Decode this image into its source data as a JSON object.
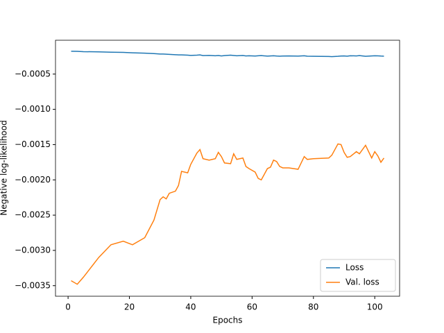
{
  "chart_data": {
    "type": "line",
    "xlabel": "Epochs",
    "ylabel": "Negative log-likelihood",
    "x": [
      1,
      3,
      5,
      10,
      14,
      18,
      21,
      25,
      28,
      30,
      31,
      32,
      33,
      35,
      36,
      37,
      39,
      40,
      42,
      43,
      44,
      46,
      48,
      49,
      50,
      51,
      53,
      54,
      55,
      57,
      58,
      59,
      61,
      62,
      63,
      65,
      66,
      67,
      68,
      69,
      70,
      72,
      75,
      77,
      78,
      80,
      85,
      86,
      88,
      89,
      90,
      91,
      92,
      94,
      95,
      97,
      99,
      100,
      101,
      102,
      103
    ],
    "series": [
      {
        "name": "Loss",
        "color": "#1f77b4",
        "values": [
          -0.000176,
          -0.000178,
          -0.000182,
          -0.000185,
          -0.00019,
          -0.000192,
          -0.000198,
          -0.000203,
          -0.00021,
          -0.000215,
          -0.000216,
          -0.000218,
          -0.00022,
          -0.000225,
          -0.000228,
          -0.000228,
          -0.000232,
          -0.000235,
          -0.000232,
          -0.000228,
          -0.000238,
          -0.000235,
          -0.00024,
          -0.000236,
          -0.000242,
          -0.000238,
          -0.000232,
          -0.000236,
          -0.00024,
          -0.000236,
          -0.000242,
          -0.00024,
          -0.000244,
          -0.00024,
          -0.000238,
          -0.000245,
          -0.000242,
          -0.00024,
          -0.000244,
          -0.000246,
          -0.000244,
          -0.000242,
          -0.000245,
          -0.00024,
          -0.000246,
          -0.000248,
          -0.00025,
          -0.000252,
          -0.000248,
          -0.000244,
          -0.000242,
          -0.000246,
          -0.00024,
          -0.000242,
          -0.000238,
          -0.000248,
          -0.000242,
          -0.00024,
          -0.000241,
          -0.000244,
          -0.000246
        ]
      },
      {
        "name": "Val. loss",
        "color": "#ff7f0e",
        "values": [
          -0.00343,
          -0.00348,
          -0.00338,
          -0.0031,
          -0.00292,
          -0.00287,
          -0.00292,
          -0.00282,
          -0.00257,
          -0.00228,
          -0.00224,
          -0.00227,
          -0.00219,
          -0.00216,
          -0.00208,
          -0.00188,
          -0.0019,
          -0.00178,
          -0.00162,
          -0.00157,
          -0.0017,
          -0.00172,
          -0.0017,
          -0.00161,
          -0.00167,
          -0.00176,
          -0.00177,
          -0.00163,
          -0.00171,
          -0.00169,
          -0.00181,
          -0.00184,
          -0.00189,
          -0.00198,
          -0.002,
          -0.00184,
          -0.00182,
          -0.00172,
          -0.00174,
          -0.00181,
          -0.00183,
          -0.00183,
          -0.00185,
          -0.00167,
          -0.00171,
          -0.0017,
          -0.00169,
          -0.00165,
          -0.00149,
          -0.0015,
          -0.00161,
          -0.00168,
          -0.00167,
          -0.0016,
          -0.00163,
          -0.00151,
          -0.00169,
          -0.0016,
          -0.00166,
          -0.00175,
          -0.00169
        ]
      }
    ],
    "xlim": [
      -4.1,
      108.1
    ],
    "xticks": [
      0,
      20,
      40,
      60,
      80,
      100
    ],
    "ylim": [
      -0.00365,
      -2e-05
    ],
    "yticks": [
      {
        "value": -0.0035,
        "label": "−0.0035"
      },
      {
        "value": -0.003,
        "label": "−0.0030"
      },
      {
        "value": -0.0025,
        "label": "−0.0025"
      },
      {
        "value": -0.002,
        "label": "−0.0020"
      },
      {
        "value": -0.0015,
        "label": "−0.0015"
      },
      {
        "value": -0.001,
        "label": "−0.0010"
      },
      {
        "value": -0.0005,
        "label": "−0.0005"
      }
    ],
    "legend": "lower right"
  }
}
